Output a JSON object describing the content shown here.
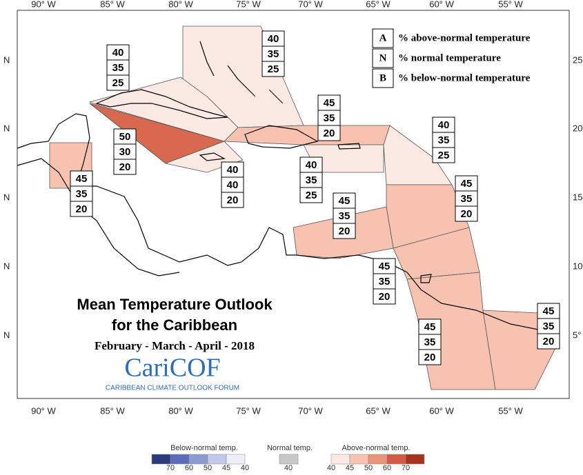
{
  "axes": {
    "top": [
      "90° W",
      "85° W",
      "80° W",
      "75° W",
      "70° W",
      "65° W",
      "60° W",
      "55° W"
    ],
    "bottom": [
      "90° W",
      "85° W",
      "80° W",
      "75° W",
      "70° W",
      "65° W",
      "60° W",
      "55° W"
    ],
    "left": [
      "N",
      "N",
      "N",
      "N",
      "N"
    ],
    "right": [
      "25",
      "20",
      "15",
      "10",
      "5°"
    ]
  },
  "legend": [
    {
      "key": "A",
      "label": "% above-normal temperature"
    },
    {
      "key": "N",
      "label": "% normal temperature"
    },
    {
      "key": "B",
      "label": "% below-normal temperature"
    }
  ],
  "regions": [
    {
      "values": [
        40,
        35,
        25
      ],
      "color": "#fbe9e3"
    },
    {
      "values": [
        40,
        35,
        25
      ],
      "color": "#fbe9e3"
    },
    {
      "values": [
        50,
        30,
        20
      ],
      "color": "#d9694e"
    },
    {
      "values": [
        45,
        35,
        20
      ],
      "color": "#f7c3b0"
    },
    {
      "values": [
        40,
        40,
        20
      ],
      "color": "#fbe9e3"
    },
    {
      "values": [
        45,
        35,
        20
      ],
      "color": "#f7c3b0"
    },
    {
      "values": [
        40,
        35,
        25
      ],
      "color": "#fbe9e3"
    },
    {
      "values": [
        40,
        35,
        25
      ],
      "color": "#fbe9e3"
    },
    {
      "values": [
        45,
        35,
        20
      ],
      "color": "#f7c3b0"
    },
    {
      "values": [
        45,
        35,
        20
      ],
      "color": "#f7c3b0"
    },
    {
      "values": [
        45,
        35,
        20
      ],
      "color": "#f7c3b0"
    },
    {
      "values": [
        45,
        35,
        20
      ],
      "color": "#f7c3b0"
    },
    {
      "values": [
        45,
        35,
        20
      ],
      "color": "#f7c3b0"
    }
  ],
  "title": {
    "line1": "Mean Temperature Outlook",
    "line2": "for the Caribbean",
    "period": "February - March - April - 2018",
    "logo": "CariCOF",
    "logo_sub": "CARIBBEAN CLIMATE OUTLOOK FORUM"
  },
  "scale": {
    "below": {
      "title": "Below-normal temp.",
      "ticks": [
        70,
        60,
        50,
        45,
        40
      ],
      "colors": [
        "#2b3a7a",
        "#5a6cb8",
        "#8e9bd0",
        "#c2c8e8",
        "#eceff8"
      ]
    },
    "normal": {
      "title": "Normal temp.",
      "ticks": [
        40
      ],
      "colors": [
        "#c8c8c8"
      ]
    },
    "above": {
      "title": "Above-normal temp.",
      "ticks": [
        40,
        45,
        50,
        60,
        70
      ],
      "colors": [
        "#fbe9e3",
        "#f7c3b0",
        "#e89478",
        "#d45a44",
        "#a8321f"
      ]
    }
  }
}
